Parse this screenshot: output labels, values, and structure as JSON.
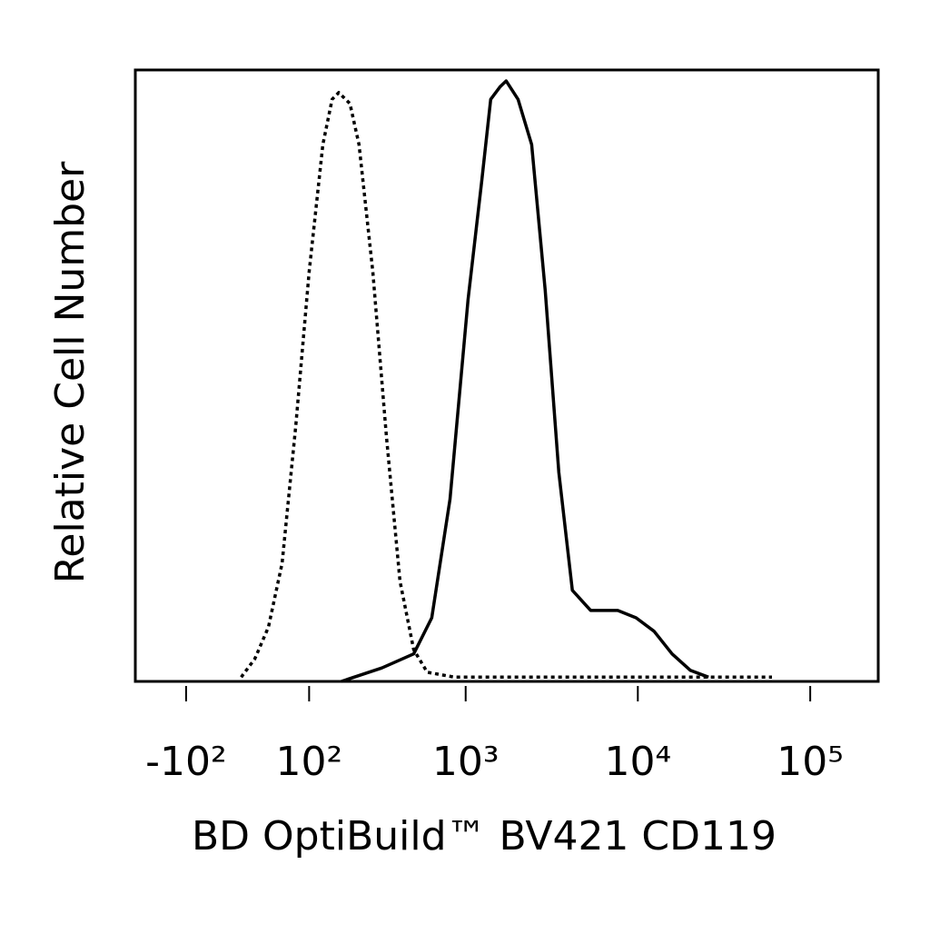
{
  "chart_data": {
    "type": "line",
    "xlabel": "BD OptiBuild™ BV421 CD119",
    "ylabel": "Relative Cell Number",
    "xscale": "biexponential",
    "xlim": [
      -232,
      248000
    ],
    "xticks": [
      {
        "value": -100,
        "label": "-10²"
      },
      {
        "value": 100,
        "label": "10²"
      },
      {
        "value": 1000,
        "label": "10³"
      },
      {
        "value": 10000,
        "label": "10⁴"
      },
      {
        "value": 100000,
        "label": "10⁵"
      }
    ],
    "ylim": [
      0,
      100
    ],
    "series": [
      {
        "color": "#000000",
        "linestyle": "dotted",
        "x": [
          -9.3,
          10.6,
          30.8,
          52,
          75,
          100,
          129,
          151,
          168,
          200,
          229,
          280,
          339,
          410,
          495,
          595,
          861,
          2900,
          9770,
          60000
        ],
        "values": [
          0.7,
          3.7,
          8.9,
          19.3,
          41.7,
          67,
          87.8,
          95.2,
          96.3,
          94.5,
          87.8,
          67,
          40.2,
          16.4,
          5.2,
          1.5,
          0.7,
          0.7,
          0.7,
          0.7
        ]
      },
      {
        "color": "#000000",
        "linestyle": "solid",
        "x": [
          175,
          318,
          495,
          633,
          810,
          1033,
          1240,
          1400,
          1583,
          1720,
          2017,
          2420,
          2900,
          3480,
          4170,
          5330,
          7650,
          9770,
          12430,
          15800,
          20200,
          25700
        ],
        "values": [
          0,
          2.2,
          4.5,
          10.4,
          29.8,
          62.5,
          81.8,
          95.2,
          97.2,
          98.2,
          95.2,
          87.8,
          64,
          34.2,
          14.9,
          11.6,
          11.6,
          10.4,
          8.2,
          4.5,
          1.8,
          0.7
        ]
      }
    ]
  }
}
